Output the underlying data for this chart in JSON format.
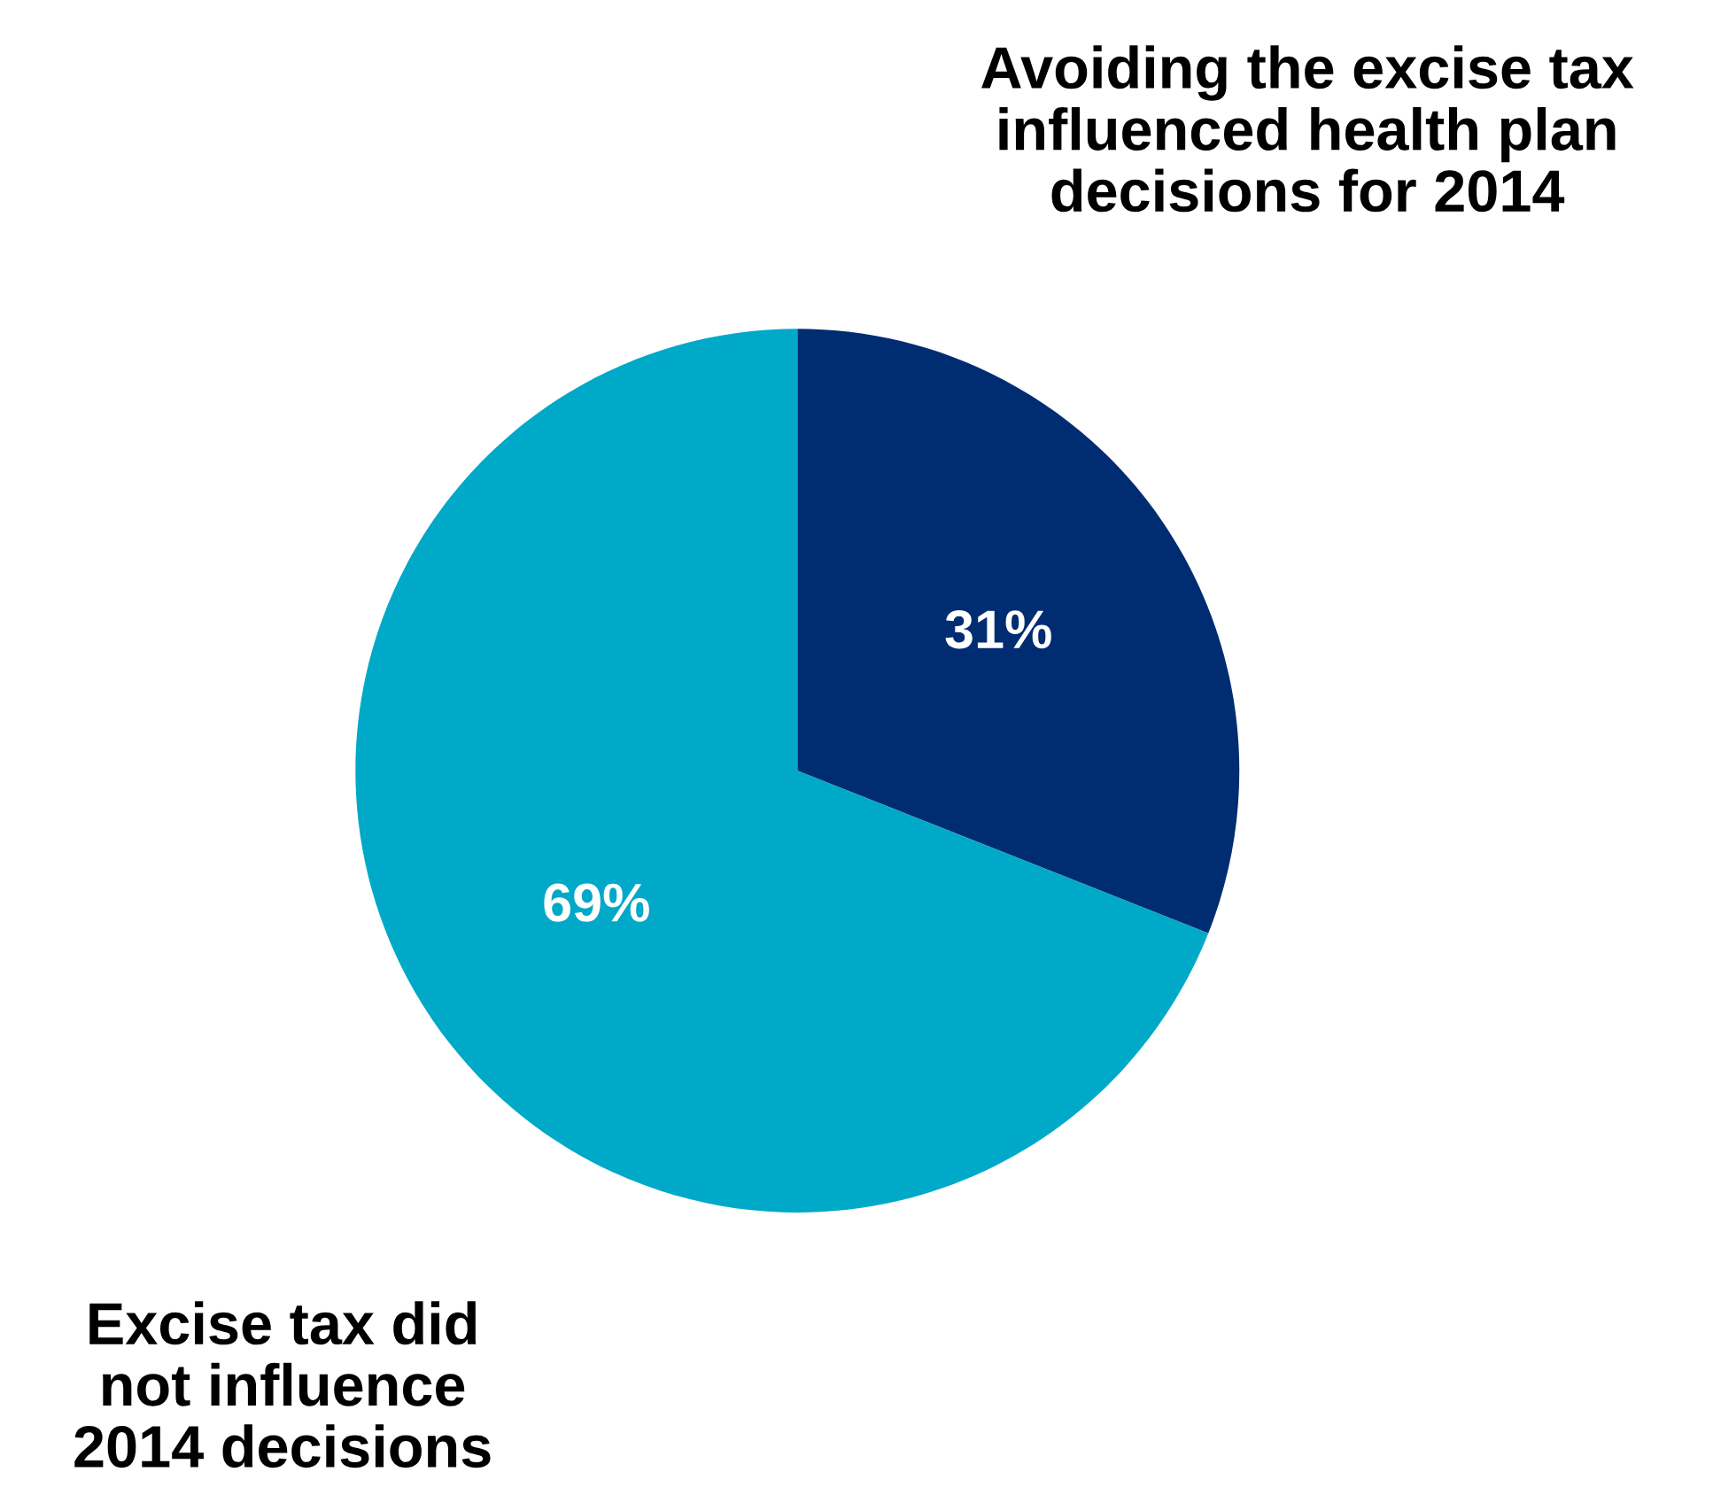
{
  "chart_data": {
    "type": "pie",
    "categories": [
      "Avoiding the excise tax influenced health plan decisions for 2014",
      "Excise tax did not influence 2014 decisions"
    ],
    "values": [
      31,
      69
    ],
    "colors": [
      "#002d72",
      "#00a9c8"
    ],
    "value_labels": [
      "31%",
      "69%"
    ],
    "legend": false
  }
}
